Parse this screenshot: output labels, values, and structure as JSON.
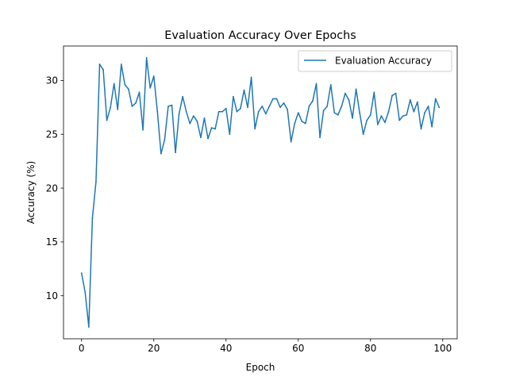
{
  "chart_data": {
    "type": "line",
    "title": "Evaluation Accuracy Over Epochs",
    "xlabel": "Epoch",
    "ylabel": "Accuracy (%)",
    "xlim": [
      -5,
      104
    ],
    "ylim": [
      6,
      33.2
    ],
    "xticks": [
      0,
      20,
      40,
      60,
      80,
      100
    ],
    "yticks": [
      10,
      15,
      20,
      25,
      30
    ],
    "grid": false,
    "legend_position": "top-right",
    "series": [
      {
        "name": "Evaluation Accuracy",
        "color": "#1f77b4",
        "x": [
          0,
          1,
          2,
          3,
          4,
          5,
          6,
          7,
          8,
          9,
          10,
          11,
          12,
          13,
          14,
          15,
          16,
          17,
          18,
          19,
          20,
          21,
          22,
          23,
          24,
          25,
          26,
          27,
          28,
          29,
          30,
          31,
          32,
          33,
          34,
          35,
          36,
          37,
          38,
          39,
          40,
          41,
          42,
          43,
          44,
          45,
          46,
          47,
          48,
          49,
          50,
          51,
          52,
          53,
          54,
          55,
          56,
          57,
          58,
          59,
          60,
          61,
          62,
          63,
          64,
          65,
          66,
          67,
          68,
          69,
          70,
          71,
          72,
          73,
          74,
          75,
          76,
          77,
          78,
          79,
          80,
          81,
          82,
          83,
          84,
          85,
          86,
          87,
          88,
          89,
          90,
          91,
          92,
          93,
          94,
          95,
          96,
          97,
          98,
          99
        ],
        "values": [
          12.1,
          10.3,
          7.1,
          17.2,
          20.6,
          31.5,
          31.0,
          26.3,
          27.5,
          29.7,
          27.3,
          31.5,
          29.6,
          29.2,
          27.6,
          27.9,
          28.9,
          25.4,
          32.1,
          29.3,
          30.4,
          27.1,
          23.2,
          24.5,
          27.6,
          27.7,
          23.3,
          26.9,
          28.5,
          27.1,
          26.0,
          26.7,
          26.2,
          24.7,
          26.5,
          24.6,
          25.6,
          25.5,
          27.1,
          27.1,
          27.4,
          25.0,
          28.5,
          27.1,
          27.4,
          29.1,
          27.5,
          30.3,
          25.5,
          27.1,
          27.6,
          26.9,
          27.6,
          28.3,
          28.3,
          27.5,
          27.9,
          27.3,
          24.3,
          26.0,
          27.0,
          26.2,
          26.0,
          27.6,
          28.1,
          29.7,
          24.7,
          27.2,
          27.6,
          29.6,
          27.0,
          26.8,
          27.6,
          28.8,
          28.2,
          26.5,
          29.2,
          27.0,
          25.0,
          26.3,
          26.8,
          28.9,
          25.9,
          26.7,
          26.1,
          27.1,
          28.6,
          28.8,
          26.3,
          26.7,
          26.8,
          28.2,
          27.1,
          28.0,
          25.5,
          27.0,
          27.6,
          25.7,
          28.3,
          27.5
        ]
      }
    ]
  }
}
